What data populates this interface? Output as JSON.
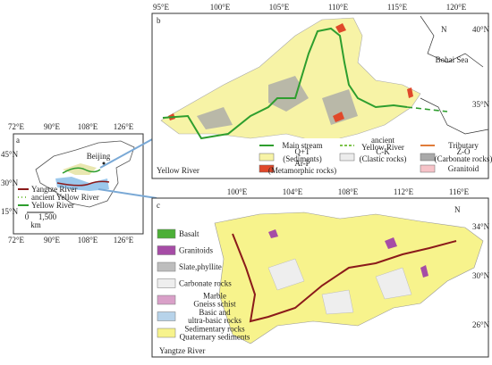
{
  "panel_a": {
    "label": "a",
    "lon_top": [
      "72°E",
      "90°E",
      "108°E",
      "126°E"
    ],
    "lon_bottom": [
      "72°E",
      "90°E",
      "108°E",
      "126°E"
    ],
    "lat": [
      "45°N",
      "30°N",
      "15°N"
    ],
    "city": "Beijing",
    "legend": [
      {
        "label": "Yangtze River",
        "color": "#8b1a1a"
      },
      {
        "label": "ancient Yellow River",
        "color": "#7cc24a"
      },
      {
        "label": "Yellow River",
        "color": "#2e9e2e"
      }
    ],
    "scale": [
      "0",
      "1,500",
      "km"
    ]
  },
  "panel_b": {
    "label": "b",
    "lon": [
      "95°E",
      "100°E",
      "105°E",
      "110°E",
      "115°E",
      "120°E"
    ],
    "lat": [
      "40°N",
      "35°N"
    ],
    "sea": "Bohai Sea",
    "north": "N",
    "caption": "Yellow River",
    "legend": [
      {
        "lines": [
          "Main stream"
        ],
        "kind": "line",
        "color": "#2e9e2e"
      },
      {
        "lines": [
          "ancient",
          "Yellow River"
        ],
        "kind": "dashed",
        "color": "#7cc24a"
      },
      {
        "lines": [
          "Tributary"
        ],
        "kind": "line",
        "color": "#e07b39"
      },
      {
        "lines": [
          "Q+T",
          "(Sediments)"
        ],
        "kind": "box",
        "color": "#f7f3a6"
      },
      {
        "lines": [
          "C-K",
          "(Clastic rocks)"
        ],
        "kind": "box",
        "color": "#ececec"
      },
      {
        "lines": [
          "Z-O",
          "(Carbonate rocks)"
        ],
        "kind": "box",
        "color": "#a9a9a9"
      },
      {
        "lines": [
          "Ar-P",
          "(Metamorphic rocks)"
        ],
        "kind": "box",
        "color": "#e0482a"
      },
      {
        "lines": [
          "Granitoid"
        ],
        "kind": "box",
        "color": "#f6c3c8"
      }
    ]
  },
  "panel_c": {
    "label": "c",
    "lon": [
      "100°E",
      "104°E",
      "108°E",
      "112°E",
      "116°E"
    ],
    "lat": [
      "34°N",
      "30°N",
      "26°N"
    ],
    "north": "N",
    "caption": "Yangtze River",
    "legend": [
      {
        "lines": [
          "Basalt"
        ],
        "color": "#4caf37"
      },
      {
        "lines": [
          "Granitoids"
        ],
        "color": "#a64ca6"
      },
      {
        "lines": [
          "Slate,phyllite"
        ],
        "color": "#bdbdbd"
      },
      {
        "lines": [
          "Carbonate rocks"
        ],
        "color": "#eeeeee"
      },
      {
        "lines": [
          "Marble",
          "Gneiss schist"
        ],
        "color": "#d9a0c8"
      },
      {
        "lines": [
          "Basic and",
          "ultra-basic rocks"
        ],
        "color": "#b7d3ea"
      },
      {
        "lines": [
          "Sedimentary rocks",
          "Quaternary sediments"
        ],
        "color": "#f7f38c"
      }
    ]
  }
}
